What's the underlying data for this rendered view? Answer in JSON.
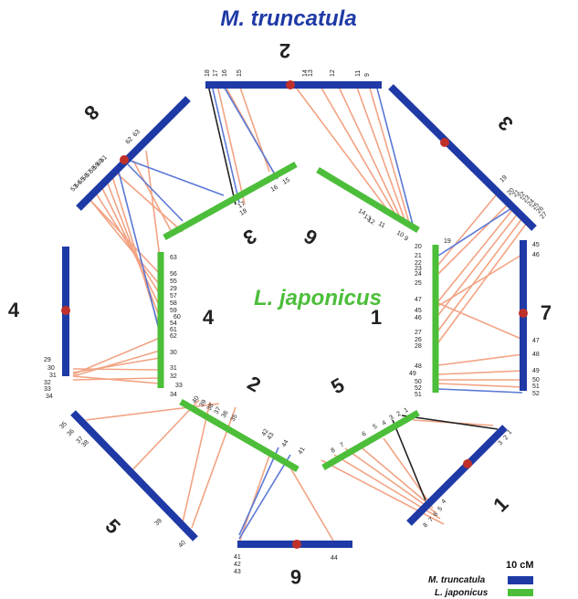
{
  "title_mt": "M. truncatula",
  "title_lj": "L. japonicus",
  "colors": {
    "mt": "#1f3aa6",
    "lj": "#4cbe3a",
    "centromere": "#c0302a",
    "salmon": "#f2a383",
    "blue_link": "#5b78d6",
    "black_link": "#222222"
  },
  "mt_chrom_labels": [
    "2",
    "3",
    "7",
    "1",
    "6",
    "5",
    "4",
    "8"
  ],
  "lj_chrom_labels": [
    "6",
    "1",
    "5",
    "2",
    "4",
    "3"
  ],
  "mt_markers": {
    "mt2": [
      "18",
      "17",
      "16",
      "15",
      "14",
      "13",
      "12",
      "11",
      "9"
    ],
    "mt3": [
      "19",
      "20",
      "21",
      "22",
      "23",
      "24",
      "25",
      "26",
      "27"
    ],
    "mt7": [
      "45",
      "46",
      "47",
      "48",
      "49",
      "50",
      "51",
      "52"
    ],
    "mt1": [
      "1",
      "2",
      "3",
      "4",
      "5",
      "6",
      "7",
      "8"
    ],
    "mt6": [
      "41",
      "42",
      "43",
      "44"
    ],
    "mt5": [
      "35",
      "36",
      "37",
      "38",
      "39",
      "40"
    ],
    "mt4": [
      "29",
      "30",
      "31",
      "32",
      "33",
      "34"
    ],
    "mt8": [
      "53",
      "54",
      "55",
      "56",
      "57",
      "58",
      "59",
      "60",
      "61",
      "62",
      "63"
    ]
  },
  "lj_markers": {
    "lj6": [
      "14",
      "13",
      "12",
      "11",
      "10",
      "9"
    ],
    "lj1": [
      "19",
      "20",
      "21",
      "22",
      "23",
      "24",
      "25",
      "47",
      "45",
      "46",
      "27",
      "26",
      "28",
      "48",
      "49",
      "50",
      "52",
      "51"
    ],
    "lj5": [
      "1",
      "2",
      "3",
      "4",
      "5",
      "6",
      "7",
      "8"
    ],
    "lj2": [
      "42",
      "43",
      "44",
      "41",
      "40",
      "39",
      "38",
      "37",
      "36",
      "35"
    ],
    "lj4": [
      "63",
      "56",
      "55",
      "29",
      "57",
      "58",
      "59",
      "60",
      "54",
      "61",
      "62",
      "30",
      "31",
      "32",
      "33",
      "34"
    ],
    "lj3": [
      "15",
      "16",
      "17",
      "18"
    ]
  },
  "legend": {
    "scale": "10 cM",
    "mt": "M. truncatula",
    "lj": "L. japonicus"
  }
}
